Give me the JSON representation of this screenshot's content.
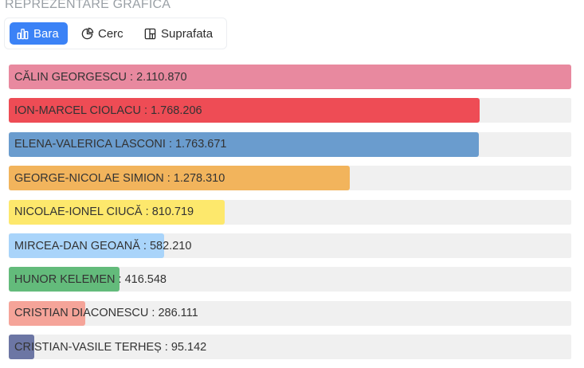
{
  "section_title": "REPREZENTARE GRAFICĂ",
  "tabs": [
    {
      "label": "Bara",
      "icon": "bar-chart-icon",
      "active": true
    },
    {
      "label": "Cerc",
      "icon": "pie-chart-icon",
      "active": false
    },
    {
      "label": "Suprafata",
      "icon": "treemap-icon",
      "active": false
    }
  ],
  "accent_color": "#3b82f6",
  "chart_data": {
    "type": "bar",
    "orientation": "horizontal",
    "categories": [
      "CĂLIN GEORGESCU",
      "ION-MARCEL CIOLACU",
      "ELENA-VALERICA LASCONI",
      "GEORGE-NICOLAE SIMION",
      "NICOLAE-IONEL CIUCĂ",
      "MIRCEA-DAN GEOANĂ",
      "HUNOR KELEMEN",
      "CRISTIAN DIACONESCU",
      "CRISTIAN-VASILE TERHEȘ"
    ],
    "values": [
      2110870,
      1768206,
      1763671,
      1278310,
      810719,
      582210,
      416548,
      286111,
      95142
    ],
    "value_labels": [
      "2.110.870",
      "1.768.206",
      "1.763.671",
      "1.278.310",
      "810.719",
      "582.210",
      "416.548",
      "286.111",
      "95.142"
    ],
    "colors": [
      "#e8899f",
      "#ee4c55",
      "#6a9cce",
      "#f2b45c",
      "#fde86c",
      "#a9d4fa",
      "#63bb7b",
      "#f5a499",
      "#6c76a4"
    ],
    "xlim": [
      0,
      2110870
    ],
    "grid": false
  }
}
